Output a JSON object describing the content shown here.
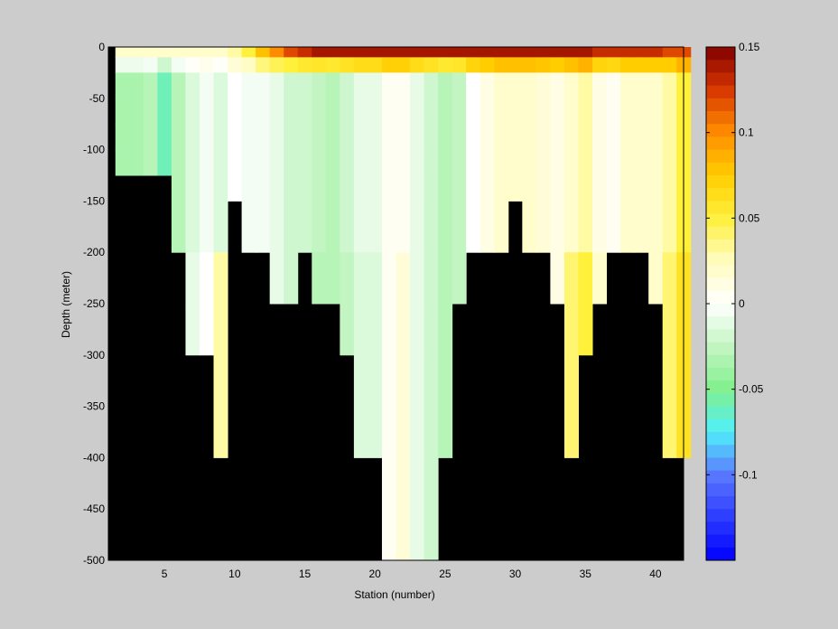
{
  "chart_data": {
    "type": "heatmap",
    "title": "",
    "xlabel": "Station (number)",
    "ylabel": "Depth (meter)",
    "xlim": [
      1,
      42
    ],
    "ylim": [
      -500,
      0
    ],
    "xticks": [
      5,
      10,
      15,
      20,
      25,
      30,
      35,
      40
    ],
    "yticks": [
      0,
      -50,
      -100,
      -150,
      -200,
      -250,
      -300,
      -350,
      -400,
      -450,
      -500
    ],
    "colorbar": {
      "range": [
        -0.15,
        0.15
      ],
      "ticks": [
        "0.15",
        "0.1",
        "0.05",
        "0",
        "-0.05",
        "-0.1"
      ],
      "tick_values": [
        0.15,
        0.1,
        0.05,
        0,
        -0.05,
        -0.1
      ],
      "colormap": "blue-cyan-green-white-yellow-orange-darkred",
      "levels": 40
    },
    "land_color": "#000000",
    "station_start": 2,
    "station_step": 1,
    "depth_levels": [
      0,
      -10,
      -25,
      -50,
      -75,
      -100,
      -125,
      -150,
      -200,
      -250,
      -300,
      -400,
      -500
    ],
    "max_depth_by_station": [
      -125,
      -125,
      -125,
      -125,
      -200,
      -300,
      -300,
      -400,
      -150,
      -200,
      -200,
      -250,
      -250,
      -200,
      -250,
      -250,
      -300,
      -400,
      -400,
      -500,
      -500,
      -500,
      -500,
      -400,
      -250,
      -200,
      -200,
      -200,
      -150,
      -200,
      -200,
      -250,
      -400,
      -300,
      -250,
      -200,
      -200,
      -200,
      -250,
      -400,
      -400
    ],
    "surface_values": [
      0.02,
      0.02,
      0.02,
      0.02,
      0.02,
      0.02,
      0.02,
      0.02,
      0.03,
      0.05,
      0.08,
      0.1,
      0.12,
      0.13,
      0.14,
      0.14,
      0.14,
      0.14,
      0.14,
      0.14,
      0.14,
      0.14,
      0.14,
      0.14,
      0.14,
      0.14,
      0.14,
      0.14,
      0.14,
      0.14,
      0.14,
      0.14,
      0.14,
      0.14,
      0.13,
      0.13,
      0.13,
      0.13,
      0.13,
      0.12,
      0.12
    ],
    "interior_values": [
      -0.035,
      -0.035,
      -0.03,
      -0.06,
      -0.03,
      -0.015,
      -0.005,
      -0.015,
      0.0,
      -0.005,
      -0.005,
      -0.01,
      -0.02,
      -0.02,
      -0.025,
      -0.03,
      -0.02,
      -0.01,
      -0.01,
      0.005,
      0.005,
      -0.01,
      -0.02,
      -0.03,
      -0.025,
      0.0,
      0.01,
      0.02,
      0.02,
      0.02,
      0.015,
      0.01,
      0.02,
      0.03,
      0.01,
      0.005,
      0.02,
      0.02,
      0.02,
      0.03,
      0.05
    ],
    "deep_values": [
      -0.035,
      -0.035,
      -0.03,
      -0.06,
      -0.03,
      -0.01,
      0.0,
      0.03,
      0.0,
      0.03,
      0.03,
      -0.01,
      -0.02,
      -0.03,
      -0.03,
      -0.03,
      -0.025,
      -0.015,
      -0.015,
      0.005,
      0.015,
      -0.01,
      -0.02,
      -0.03,
      -0.025,
      0.0,
      0.01,
      0.02,
      0.02,
      0.02,
      0.015,
      0.01,
      0.04,
      0.05,
      0.02,
      0.005,
      0.03,
      0.03,
      0.02,
      0.04,
      0.06
    ]
  }
}
